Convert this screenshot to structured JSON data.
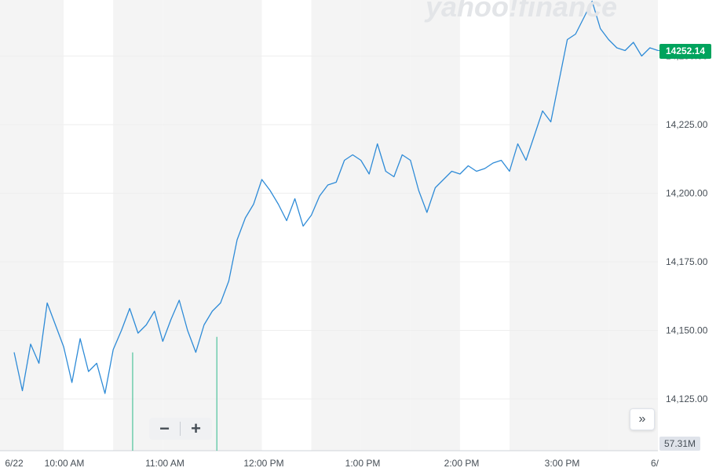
{
  "watermark": "yahoo!finance",
  "price_tag": {
    "label": "14252.14",
    "color": "#00a35d"
  },
  "volume_tag": "57.31M",
  "zoom": {
    "minus": "−",
    "plus": "+"
  },
  "scroll_icon": "»",
  "colors": {
    "line": "#2e8bd7",
    "volume": "#4fc39b",
    "band": "#f4f4f4",
    "grid": "#eeeeee",
    "text": "#464e56"
  },
  "chart_data": {
    "type": "line",
    "title": "",
    "xlabel": "",
    "ylabel": "",
    "ylim": [
      14110,
      14270
    ],
    "y_ticks": [
      "14,125.00",
      "14,150.00",
      "14,175.00",
      "14,200.00",
      "14,225.00"
    ],
    "x_ticks": [
      "6/22",
      "10:00 AM",
      "11:00 AM",
      "12:00 PM",
      "1:00 PM",
      "2:00 PM",
      "3:00 PM",
      "6/"
    ],
    "grid": true,
    "series": [
      {
        "x": [
          0,
          5,
          10,
          15,
          20,
          25,
          30,
          35,
          40,
          45,
          50,
          55,
          60,
          65,
          70,
          75,
          80,
          85,
          90,
          95,
          100,
          105,
          110,
          115,
          120,
          125,
          130,
          135,
          140,
          145,
          150,
          155,
          160,
          165,
          170,
          175,
          180,
          185,
          190,
          195,
          200,
          205,
          210,
          215,
          220,
          225,
          230,
          235,
          240,
          245,
          250,
          255,
          260,
          265,
          270,
          275,
          280,
          285,
          290,
          295,
          300,
          305,
          310,
          315,
          320,
          325,
          330,
          335,
          340,
          345,
          350,
          355,
          360,
          365,
          370,
          375,
          380,
          385,
          390
        ],
        "values": [
          14142,
          14128,
          14145,
          14138,
          14160,
          14152,
          14144,
          14131,
          14147,
          14135,
          14138,
          14127,
          14143,
          14150,
          14158,
          14149,
          14152,
          14157,
          14146,
          14154,
          14161,
          14150,
          14142,
          14152,
          14157,
          14160,
          14168,
          14183,
          14191,
          14196,
          14205,
          14201,
          14196,
          14190,
          14198,
          14188,
          14192,
          14199,
          14203,
          14204,
          14212,
          14214,
          14212,
          14207,
          14218,
          14208,
          14206,
          14214,
          14212,
          14201,
          14193,
          14202,
          14205,
          14208,
          14207,
          14210,
          14208,
          14209,
          14211,
          14212,
          14208,
          14218,
          14212,
          14221,
          14230,
          14226,
          14241,
          14256,
          14258,
          14264,
          14270,
          14260,
          14256,
          14253,
          14252,
          14255,
          14250,
          14253,
          14252
        ]
      }
    ],
    "volume": {
      "spikes": [
        {
          "time": 72,
          "value": 38
        },
        {
          "time": 123,
          "value": 44
        }
      ]
    }
  }
}
